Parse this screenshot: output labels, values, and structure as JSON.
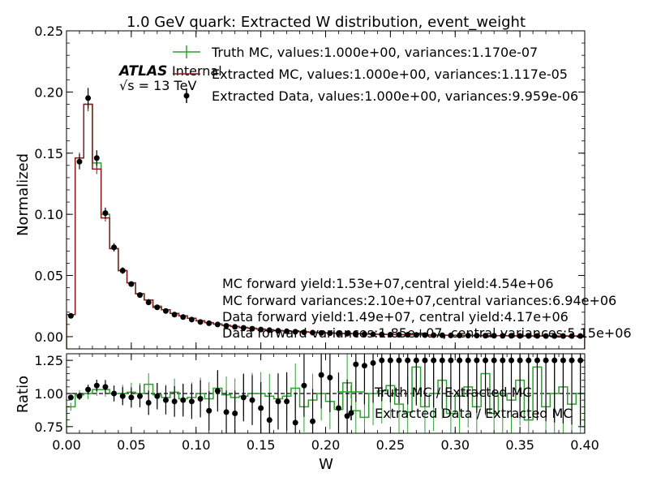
{
  "chart_data": [
    {
      "type": "line",
      "title": "1.0 GeV quark: Extracted W distribution, event_weight",
      "xlabel": "",
      "ylabel": "Normalized",
      "xlim": [
        0.0,
        0.4
      ],
      "ylim": [
        -0.01,
        0.25
      ],
      "xticks": [
        "0.00",
        "0.05",
        "0.10",
        "0.15",
        "0.20",
        "0.25",
        "0.30",
        "0.35",
        "0.40"
      ],
      "yticks": [
        "0.00",
        "0.05",
        "0.10",
        "0.15",
        "0.20",
        "0.25"
      ],
      "xtick_values": [
        0.0,
        0.05,
        0.1,
        0.15,
        0.2,
        0.25,
        0.3,
        0.35,
        0.4
      ],
      "ytick_values": [
        0.0,
        0.05,
        0.1,
        0.15,
        0.2,
        0.25
      ],
      "grid": false,
      "legend_position": "top-right",
      "atlas_label": "ATLAS",
      "atlas_sublabel": "Internal",
      "energy_label": "√s = 13 TeV",
      "bin_edges": [
        0.0,
        0.0067,
        0.0133,
        0.02,
        0.0267,
        0.0333,
        0.04,
        0.0467,
        0.0533,
        0.06,
        0.0667,
        0.0733,
        0.08,
        0.0867,
        0.0933,
        0.1,
        0.1067,
        0.1133,
        0.12,
        0.1267,
        0.1333,
        0.14,
        0.1467,
        0.1533,
        0.16,
        0.1667,
        0.1733,
        0.18,
        0.1867,
        0.1933,
        0.2,
        0.2067,
        0.2133,
        0.22,
        0.2267,
        0.2333,
        0.24,
        0.2467,
        0.2533,
        0.26,
        0.2667,
        0.2733,
        0.28,
        0.2867,
        0.2933,
        0.3,
        0.3067,
        0.3133,
        0.32,
        0.3267,
        0.3333,
        0.34,
        0.3467,
        0.3533,
        0.36,
        0.3667,
        0.3733,
        0.38,
        0.3867,
        0.3933,
        0.4
      ],
      "series": [
        {
          "name": "Truth MC, values:1.000e+00, variances:1.170e-07",
          "color": "#2ca02c",
          "style": "step",
          "values": [
            0.018,
            0.146,
            0.19,
            0.142,
            0.1,
            0.072,
            0.054,
            0.044,
            0.035,
            0.03,
            0.025,
            0.022,
            0.019,
            0.017,
            0.015,
            0.013,
            0.0115,
            0.0103,
            0.0092,
            0.0083,
            0.0075,
            0.0068,
            0.0062,
            0.0056,
            0.0051,
            0.0047,
            0.0043,
            0.0039,
            0.0036,
            0.0033,
            0.003,
            0.0028,
            0.0026,
            0.0024,
            0.0022,
            0.002,
            0.0019,
            0.0018,
            0.0017,
            0.0016,
            0.0015,
            0.0014,
            0.0013,
            0.0012,
            0.0011,
            0.001,
            0.001,
            0.0009,
            0.0009,
            0.0008,
            0.0008,
            0.0007,
            0.0007,
            0.0006,
            0.0006,
            0.0006,
            0.0005,
            0.0005,
            0.0005,
            0.0005
          ]
        },
        {
          "name": "Extracted MC, values:1.000e+00, variances:1.117e-05",
          "color": "#8b1a1a",
          "style": "step",
          "values": [
            0.018,
            0.146,
            0.19,
            0.137,
            0.097,
            0.072,
            0.054,
            0.044,
            0.035,
            0.03,
            0.024,
            0.022,
            0.019,
            0.017,
            0.015,
            0.013,
            0.0115,
            0.0103,
            0.0092,
            0.0083,
            0.0075,
            0.0068,
            0.0062,
            0.0056,
            0.0051,
            0.0047,
            0.0043,
            0.0039,
            0.0036,
            0.0033,
            0.003,
            0.0028,
            0.0026,
            0.0024,
            0.0022,
            0.002,
            0.0019,
            0.0018,
            0.0017,
            0.0016,
            0.0015,
            0.0014,
            0.0013,
            0.0012,
            0.0011,
            0.001,
            0.001,
            0.0009,
            0.0009,
            0.0008,
            0.0008,
            0.0007,
            0.0007,
            0.0006,
            0.0006,
            0.0006,
            0.0005,
            0.0005,
            0.0005,
            0.0005
          ]
        },
        {
          "name": "Extracted Data, values:1.000e+00, variances:9.959e-06",
          "color": "#000000",
          "style": "points",
          "values": [
            0.017,
            0.143,
            0.195,
            0.146,
            0.101,
            0.073,
            0.054,
            0.043,
            0.034,
            0.028,
            0.024,
            0.021,
            0.018,
            0.016,
            0.014,
            0.012,
            0.011,
            0.01,
            0.0088,
            0.008,
            0.0072,
            0.0065,
            0.0058,
            0.0053,
            0.0048,
            0.0044,
            0.004,
            0.0036,
            0.0033,
            0.003,
            0.0028,
            0.0026,
            0.0024,
            0.0022,
            0.002,
            0.0019,
            0.0018,
            0.0016,
            0.0015,
            0.0015,
            0.0014,
            0.0013,
            0.0012,
            0.0011,
            0.001,
            0.001,
            0.0009,
            0.0009,
            0.0008,
            0.0008,
            0.0007,
            0.0007,
            0.0006,
            0.0006,
            0.0006,
            0.0005,
            0.0005,
            0.0005,
            0.0005,
            0.0005
          ]
        }
      ],
      "annotations": [
        "MC forward yield:1.53e+07,central yield:4.54e+06",
        "MC forward variances:2.10e+07,central variances:6.94e+06",
        "Data forward yield:1.49e+07, central yield:4.17e+06",
        "Data forward variances:1.85e+07, central variances:5.15e+06"
      ]
    },
    {
      "type": "line",
      "title": "",
      "xlabel": "W",
      "ylabel": "Ratio",
      "xlim": [
        0.0,
        0.4
      ],
      "ylim": [
        0.7,
        1.3
      ],
      "xticks": [
        "0.00",
        "0.05",
        "0.10",
        "0.15",
        "0.20",
        "0.25",
        "0.30",
        "0.35",
        "0.40"
      ],
      "yticks": [
        "0.75",
        "1.00",
        "1.25"
      ],
      "xtick_values": [
        0.0,
        0.05,
        0.1,
        0.15,
        0.2,
        0.25,
        0.3,
        0.35,
        0.4
      ],
      "ytick_values": [
        0.75,
        1.0,
        1.25
      ],
      "reference_line": 1.0,
      "grid": false,
      "legend_position": "center-right",
      "series": [
        {
          "name": "Truth MC / Extracted MC",
          "color": "#2ca02c",
          "style": "step",
          "values": [
            0.9,
            0.99,
            1.0,
            1.03,
            1.03,
            1.0,
            1.0,
            1.01,
            1.0,
            1.07,
            0.99,
            0.97,
            1.01,
            0.96,
            0.97,
            1.0,
            0.96,
            1.04,
            0.99,
            0.97,
            0.98,
            1.0,
            1.0,
            0.98,
            0.96,
            0.98,
            1.04,
            0.9,
            0.95,
            1.0,
            0.94,
            0.88,
            1.08,
            0.87,
            0.82,
            1.0,
            1.02,
            1.06,
            0.92,
            0.86,
            1.2,
            0.9,
            1.0,
            1.1,
            0.85,
            0.98,
            1.05,
            0.9,
            1.15,
            0.85,
            1.0,
            0.95,
            1.1,
            0.8,
            1.2,
            0.9,
            1.0,
            1.05,
            0.92,
            1.0
          ]
        },
        {
          "name": "Extracted Data / Extracted MC",
          "color": "#000000",
          "style": "points",
          "values": [
            0.97,
            0.98,
            1.03,
            1.06,
            1.05,
            1.0,
            0.98,
            0.97,
            0.98,
            0.93,
            0.98,
            0.95,
            0.94,
            0.95,
            0.94,
            0.96,
            0.87,
            1.02,
            0.86,
            0.85,
            0.97,
            0.95,
            0.89,
            0.8,
            0.94,
            0.94,
            0.78,
            1.06,
            0.79,
            1.14,
            1.12,
            0.89,
            0.83,
            1.22,
            1.21,
            1.23,
            1.25,
            1.25,
            1.25,
            1.25,
            1.25,
            1.25,
            1.25,
            1.25,
            1.25,
            1.25,
            1.25,
            1.25,
            1.25,
            1.25,
            1.25,
            1.25,
            1.25,
            1.25,
            1.25,
            1.25,
            1.25,
            1.25,
            1.25,
            1.25
          ]
        }
      ]
    }
  ]
}
